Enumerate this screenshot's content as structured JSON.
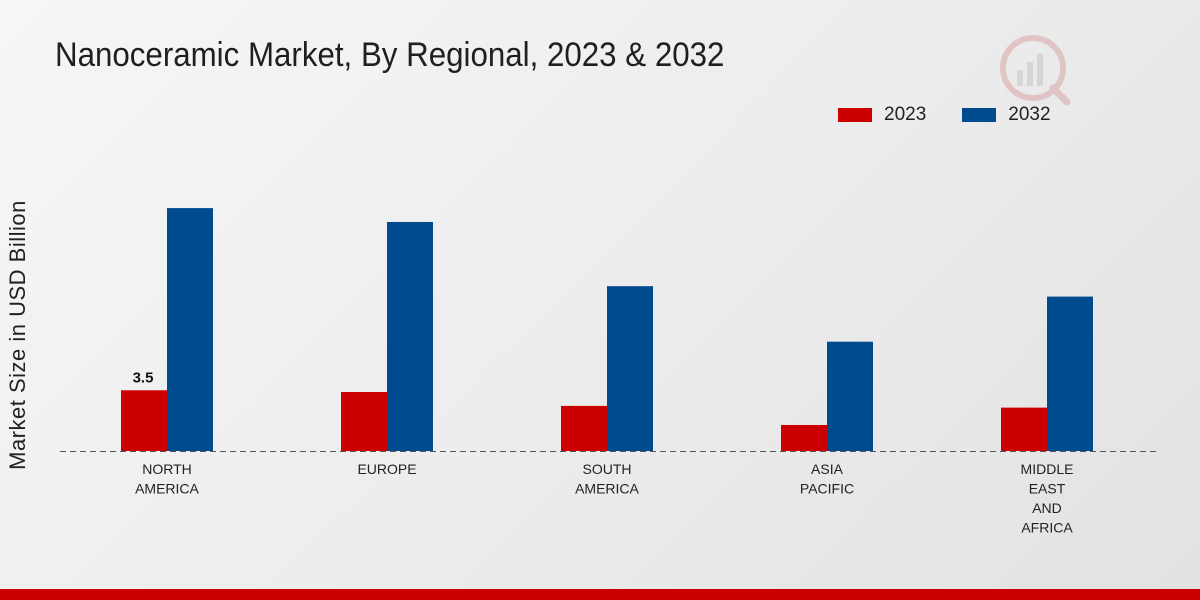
{
  "colors": {
    "y2023": "#cc0000",
    "y2032": "#004a8f"
  },
  "chart_data": {
    "type": "bar",
    "title": "Nanoceramic Market, By Regional, 2023 & 2032",
    "xlabel": "",
    "ylabel": "Market Size in USD Billion",
    "categories": [
      [
        "NORTH",
        "AMERICA"
      ],
      [
        "EUROPE"
      ],
      [
        "SOUTH",
        "AMERICA"
      ],
      [
        "ASIA",
        "PACIFIC"
      ],
      [
        "MIDDLE",
        "EAST",
        "AND",
        "AFRICA"
      ]
    ],
    "series": [
      {
        "name": "2023",
        "values": [
          3.5,
          3.4,
          2.6,
          1.5,
          2.5
        ]
      },
      {
        "name": "2032",
        "values": [
          14.0,
          13.2,
          9.5,
          6.3,
          8.9
        ]
      }
    ],
    "data_labels": [
      {
        "series": 0,
        "index": 0,
        "text": "3.5"
      }
    ],
    "ylim": [
      0,
      20
    ],
    "legend_position": "top-right",
    "grid": false
  }
}
